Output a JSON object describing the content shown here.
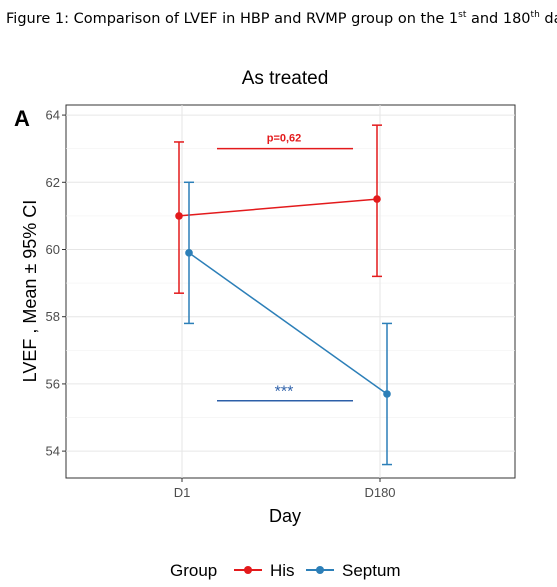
{
  "caption": {
    "text_a": "Figure 1: Comparison of LVEF in HBP and RVMP group on the 1",
    "sup_a": "st",
    "text_b": " and 180",
    "sup_b": "th",
    "text_c": " day"
  },
  "chart_data": {
    "type": "line",
    "panel_label": "A",
    "title": "As treated",
    "xlabel": "Day",
    "ylabel": "LVEF , Mean ± 95% CI",
    "categories": [
      "D1",
      "D180"
    ],
    "ylim": [
      53.2,
      64.3
    ],
    "yticks": [
      54,
      56,
      58,
      60,
      62,
      64
    ],
    "grid": true,
    "legend": {
      "title": "Group",
      "position": "bottom"
    },
    "series": [
      {
        "name": "His",
        "color": "#e31a1c",
        "values": [
          61.0,
          61.5
        ],
        "ci_low": [
          58.7,
          59.2
        ],
        "ci_high": [
          63.2,
          63.7
        ]
      },
      {
        "name": "Septum",
        "color": "#2c7fb8",
        "values": [
          59.9,
          55.7
        ],
        "ci_low": [
          57.8,
          53.6
        ],
        "ci_high": [
          62.0,
          57.8
        ]
      }
    ],
    "annotations": [
      {
        "text": "p=0,62",
        "color": "#e31a1c",
        "y": 63.0
      },
      {
        "text": "***",
        "color": "#2c5fa8",
        "y": 55.5
      }
    ]
  }
}
